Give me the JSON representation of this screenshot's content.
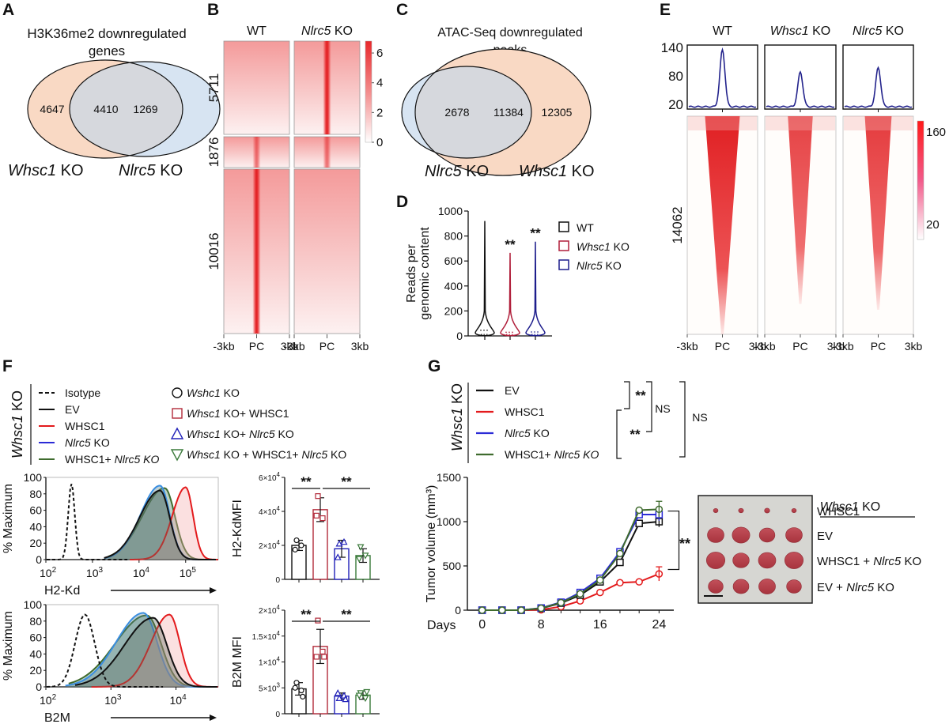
{
  "panel_labels": [
    "A",
    "B",
    "C",
    "D",
    "E",
    "F",
    "G"
  ],
  "colors": {
    "orange_fill": "#f9d9c4",
    "blue_fill": "#d7e4f2",
    "overlap_fill": "#d6d8dd",
    "heat_red": "#e8282b",
    "profile_blue": "#23238c",
    "ev_black": "#000000",
    "whsc1_red": "#e31a1c",
    "nlrc5_blue": "#2b2bd6",
    "combo_green": "#3f6b2e",
    "bar_red": "#b22a3a",
    "bar_blue": "#2020b8",
    "bar_green": "#3a7a3a",
    "photo_bg": "#d6d6d2",
    "tumor": "#b8404a"
  },
  "chart_data": [
    {
      "panel": "A",
      "type": "venn",
      "title": [
        "H3K36me2 downregulated",
        "genes"
      ],
      "sets": [
        {
          "name_italic": "Whsc1",
          "name_rest": " KO",
          "only": 4647
        },
        {
          "name_italic": "Nlrc5",
          "name_rest": " KO",
          "only": 1269
        }
      ],
      "overlap": 4410
    },
    {
      "panel": "B",
      "type": "heatmap",
      "columns": [
        {
          "italic": "",
          "rest": "WT"
        },
        {
          "italic": "Nlrc5",
          "rest": " KO"
        }
      ],
      "row_groups": [
        {
          "label": "5711",
          "wt_center": 0.0,
          "ko_center": 1.0
        },
        {
          "label": "1876",
          "wt_center": 0.6,
          "ko_center": 0.6
        },
        {
          "label": "10016",
          "wt_center": 1.0,
          "ko_center": 0.0
        }
      ],
      "x_ticks": [
        "-3kb",
        "PC",
        "3kb"
      ],
      "colorbar": {
        "ticks": [
          0,
          2,
          4,
          6
        ],
        "range": [
          0,
          6.8
        ]
      }
    },
    {
      "panel": "C",
      "type": "venn",
      "title": [
        "ATAC-Seq downregulated",
        "peaks"
      ],
      "sets": [
        {
          "name_italic": "Nlrc5",
          "name_rest": " KO",
          "only": 2678
        },
        {
          "name_italic": "Whsc1",
          "name_rest": " KO",
          "only": 12305
        }
      ],
      "overlap": 11384
    },
    {
      "panel": "D",
      "type": "violin",
      "ylabel": [
        "Reads per",
        "genomic content"
      ],
      "ylim": [
        0,
        1000
      ],
      "yticks": [
        0,
        200,
        400,
        600,
        800,
        1000
      ],
      "series": [
        {
          "name": "WT",
          "italic": "",
          "rest": "WT",
          "max": 920,
          "median": 45,
          "sig": ""
        },
        {
          "name": "Whsc1 KO",
          "italic": "Whsc1",
          "rest": " KO",
          "max": 665,
          "median": 30,
          "sig": "**"
        },
        {
          "name": "Nlrc5 KO",
          "italic": "Nlrc5",
          "rest": " KO",
          "max": 755,
          "median": 32,
          "sig": "**"
        }
      ]
    },
    {
      "panel": "E",
      "type": "profile+heatmap",
      "columns": [
        {
          "italic": "",
          "rest": "WT",
          "peak": 135
        },
        {
          "italic": "Whsc1",
          "rest": " KO",
          "peak": 88
        },
        {
          "italic": "Nlrc5",
          "rest": " KO",
          "peak": 97
        }
      ],
      "profile_yticks": [
        20,
        80,
        140
      ],
      "profile_ylim": [
        10,
        145
      ],
      "baseline": 15,
      "row_label": "14062",
      "x_ticks": [
        "-3kb",
        "PC",
        "3kb"
      ],
      "colorbar": {
        "ticks": [
          20,
          160
        ]
      }
    },
    {
      "panel": "F",
      "type": "flow_histogram",
      "group_label": {
        "italic": "Whsc1",
        "rest": " KO"
      },
      "legend_lines": [
        {
          "name": "Isotype",
          "italic": "",
          "style": "dashed"
        },
        {
          "name": "EV",
          "italic": "",
          "style": "black"
        },
        {
          "name": "WHSC1",
          "italic": "",
          "style": "red"
        },
        {
          "name": "Nlrc5 KO",
          "italic": "Nlrc5",
          "rest": " KO",
          "style": "blue"
        },
        {
          "name": "WHSC1+ Nlrc5 KO",
          "pre": "WHSC1+ ",
          "italic": "Nlrc5 KO",
          "style": "green"
        }
      ],
      "legend_markers": [
        {
          "marker": "circle",
          "italic": "Wshc1",
          "rest": " KO"
        },
        {
          "marker": "square",
          "italic": "Whsc1",
          "rest": " KO+ WHSC1"
        },
        {
          "marker": "triangle",
          "italic": "Whsc1",
          "rest": " KO+ ",
          "italic2": "Nlrc5",
          "rest2": " KO"
        },
        {
          "marker": "triangle-down",
          "italic": "Whsc1",
          "rest": " KO + WHSC1+ ",
          "italic2": "Nlrc5",
          "rest2": " KO"
        }
      ],
      "histograms": [
        {
          "marker": "H2-Kd",
          "ylabel": "% Maximum",
          "yticks": [
            0,
            20,
            40,
            60,
            80,
            100
          ],
          "xticks_exp": [
            2,
            3,
            4,
            5
          ],
          "peaks_log10": {
            "isotype": 2.55,
            "ev": 4.45,
            "whsc1": 5.0,
            "nlrc5": 4.45,
            "combo": 4.55
          }
        },
        {
          "marker": "B2M",
          "ylabel": "% Maximum",
          "yticks": [
            0,
            20,
            40,
            60,
            80,
            100
          ],
          "xticks_exp": [
            2,
            3,
            4
          ],
          "peaks_log10": {
            "isotype": 2.6,
            "ev": 3.65,
            "whsc1": 3.9,
            "nlrc5": 3.5,
            "combo": 3.55
          }
        }
      ],
      "bars": [
        {
          "ylabel": "H2-KdMFI",
          "ylim": [
            0,
            60000
          ],
          "yticks": [
            {
              "v": 0,
              "t": "0"
            },
            {
              "v": 20000,
              "b": "2×10",
              "e": "4"
            },
            {
              "v": 40000,
              "b": "4×10",
              "e": "4"
            },
            {
              "v": 60000,
              "b": "6×10",
              "e": "4"
            }
          ],
          "values": [
            20000,
            41000,
            18000,
            14000
          ],
          "errors": [
            3000,
            7000,
            5000,
            4000
          ],
          "points": [
            [
              23000,
              20000,
              17500
            ],
            [
              49000,
              36000,
              37500
            ],
            [
              21000,
              22000,
              13000
            ],
            [
              19000,
              14000,
              12000
            ]
          ],
          "sig": [
            "**",
            "**"
          ]
        },
        {
          "ylabel": "B2M  MFI",
          "ylim": [
            0,
            20000
          ],
          "yticks": [
            {
              "v": 0,
              "t": "0"
            },
            {
              "v": 5000,
              "b": "5×10",
              "e": "3"
            },
            {
              "v": 10000,
              "b": "1×10",
              "e": "4"
            },
            {
              "v": 15000,
              "b": "1.5×10",
              "e": "4"
            },
            {
              "v": 20000,
              "b": "2×10",
              "e": "4"
            }
          ],
          "values": [
            4800,
            13000,
            3400,
            3600
          ],
          "errors": [
            1200,
            3300,
            600,
            800
          ],
          "points": [
            [
              6000,
              4500,
              5000,
              3300
            ],
            [
              18000,
              12000,
              11000,
              11000
            ],
            [
              3000,
              3500,
              4000,
              2800
            ],
            [
              4000,
              3000,
              3500,
              4200
            ]
          ],
          "sig": [
            "**",
            "**"
          ]
        }
      ],
      "bar_groups": [
        "Wshc1 KO",
        "Whsc1 KO+ WHSC1",
        "Whsc1 KO+ Nlrc5 KO",
        "Whsc1 KO + WHSC1+ Nlrc5 KO"
      ]
    },
    {
      "panel": "G",
      "type": "line",
      "group_label": {
        "italic": "Whsc1",
        "rest": " KO"
      },
      "legend": [
        {
          "name": "EV",
          "pre": "EV",
          "italic": ""
        },
        {
          "name": "WHSC1",
          "pre": "WHSC1",
          "italic": ""
        },
        {
          "name": "Nlrc5 KO",
          "pre": "",
          "italic": "Nlrc5",
          "rest": " KO"
        },
        {
          "name": "WHSC1+ Nlrc5 KO",
          "pre": "WHSC1+ ",
          "italic": "Nlrc5 KO"
        }
      ],
      "stats": [
        {
          "between": [
            "EV",
            "WHSC1"
          ],
          "label": "**"
        },
        {
          "between": [
            "WHSC1",
            "WHSC1+ Nlrc5 KO"
          ],
          "label": "**"
        },
        {
          "between": [
            "EV",
            "Nlrc5 KO"
          ],
          "label": "NS"
        },
        {
          "between": [
            "EV",
            "WHSC1+ Nlrc5 KO"
          ],
          "label": "NS"
        }
      ],
      "xlabel": "Days",
      "ylabel": "Tumor volume (mm³)",
      "xlim": [
        -2,
        26
      ],
      "ylim": [
        0,
        1500
      ],
      "xticks": [
        0,
        8,
        16,
        24
      ],
      "yticks": [
        0,
        500,
        1000,
        1500
      ],
      "x": [
        0,
        2.7,
        5.3,
        8,
        10.7,
        13.3,
        16,
        18.7,
        21.3,
        24
      ],
      "series": [
        {
          "name": "EV",
          "marker": "square",
          "values": [
            0,
            0,
            0,
            20,
            80,
            170,
            320,
            540,
            980,
            1000
          ],
          "err_last": 60
        },
        {
          "name": "WHSC1",
          "marker": "circle",
          "values": [
            0,
            0,
            0,
            5,
            40,
            105,
            200,
            310,
            320,
            410
          ],
          "err_last": 80
        },
        {
          "name": "Nlrc5 KO",
          "marker": "square",
          "values": [
            0,
            0,
            0,
            25,
            90,
            200,
            360,
            660,
            1080,
            1080
          ],
          "err_last": 70
        },
        {
          "name": "WHSC1+ Nlrc5 KO",
          "marker": "circle",
          "values": [
            0,
            0,
            0,
            22,
            85,
            185,
            340,
            640,
            1130,
            1140
          ],
          "err_last": 90
        }
      ],
      "end_sig": "**"
    }
  ],
  "photo": {
    "header": {
      "italic": "Whsc1",
      "rest": " KO"
    },
    "rows": [
      {
        "pre": "WHSC1",
        "italic": "",
        "rest": "",
        "size": 0.3
      },
      {
        "pre": "EV",
        "italic": "",
        "rest": "",
        "size": 1.0
      },
      {
        "pre": "WHSC1 + ",
        "italic": "Nlrc5",
        "rest": " KO",
        "size": 1.05
      },
      {
        "pre": "EV + ",
        "italic": "Nlrc5",
        "rest": " KO",
        "size": 0.95
      }
    ]
  }
}
